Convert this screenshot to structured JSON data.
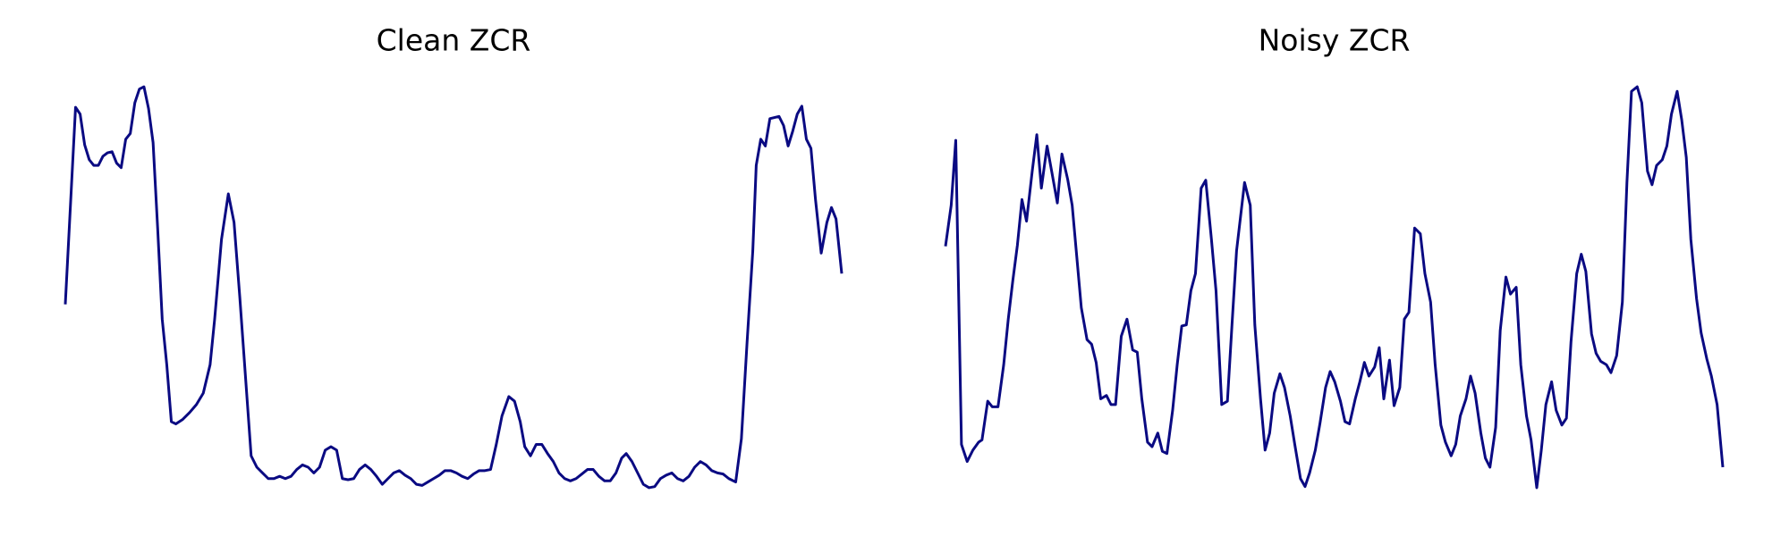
{
  "chart_data": [
    {
      "type": "line",
      "title": "Clean ZCR",
      "color": "#0a0a82",
      "xlim": [
        0,
        681
      ],
      "ylim": [
        0,
        400
      ],
      "x": [
        0,
        9,
        13,
        17,
        21,
        25,
        29,
        33,
        37,
        41,
        45,
        49,
        53,
        57,
        61,
        65,
        69,
        73,
        77,
        81,
        85,
        89,
        93,
        97,
        103,
        109,
        115,
        121,
        127,
        131,
        137,
        143,
        148,
        153,
        158,
        163,
        168,
        173,
        178,
        183,
        188,
        193,
        198,
        203,
        208,
        213,
        218,
        223,
        228,
        233,
        238,
        243,
        248,
        253,
        258,
        263,
        268,
        273,
        278,
        283,
        288,
        293,
        298,
        303,
        308,
        313,
        318,
        323,
        328,
        333,
        338,
        343,
        348,
        353,
        358,
        363,
        368,
        373,
        378,
        383,
        389,
        394,
        399,
        403,
        408,
        413,
        418,
        423,
        428,
        433,
        438,
        443,
        448,
        453,
        458,
        463,
        468,
        473,
        478,
        483,
        488,
        492,
        497,
        502,
        507,
        512,
        517,
        522,
        527,
        532,
        537,
        542,
        547,
        552,
        557,
        562,
        567,
        572,
        577,
        582,
        588,
        593,
        598,
        603,
        606,
        610,
        614,
        618,
        626,
        630,
        634,
        638,
        642,
        646,
        650,
        654,
        658,
        663,
        668,
        672,
        676,
        681
      ],
      "values": [
        183,
        356,
        350,
        323,
        310,
        305,
        305,
        313,
        316,
        317,
        307,
        303,
        328,
        333,
        360,
        372,
        374,
        355,
        325,
        250,
        170,
        130,
        80,
        78,
        82,
        88,
        95,
        105,
        130,
        170,
        240,
        280,
        255,
        190,
        120,
        50,
        40,
        35,
        30,
        30,
        32,
        30,
        32,
        38,
        42,
        40,
        35,
        40,
        55,
        58,
        55,
        30,
        29,
        30,
        38,
        42,
        38,
        32,
        25,
        30,
        35,
        37,
        33,
        30,
        25,
        24,
        27,
        30,
        33,
        37,
        37,
        35,
        32,
        30,
        34,
        37,
        37,
        38,
        60,
        85,
        102,
        98,
        80,
        58,
        50,
        60,
        60,
        52,
        45,
        35,
        30,
        28,
        30,
        34,
        38,
        38,
        32,
        28,
        28,
        35,
        48,
        52,
        45,
        35,
        25,
        22,
        23,
        30,
        33,
        35,
        30,
        28,
        32,
        40,
        45,
        42,
        37,
        35,
        34,
        30,
        27,
        65,
        150,
        230,
        305,
        328,
        322,
        346,
        348,
        340,
        322,
        335,
        350,
        357,
        328,
        320,
        275,
        228,
        255,
        268,
        258,
        210
      ]
    },
    {
      "type": "line",
      "title": "Noisy ZCR",
      "color": "#0a0a82",
      "xlim": [
        0,
        681
      ],
      "ylim": [
        0,
        400
      ],
      "x": [
        0,
        5,
        9,
        14,
        19,
        24,
        29,
        32,
        37,
        41,
        46,
        51,
        55,
        59,
        63,
        67,
        71,
        76,
        80,
        84,
        89,
        93,
        98,
        102,
        107,
        111,
        115,
        119,
        124,
        128,
        132,
        136,
        141,
        145,
        149,
        154,
        159,
        164,
        168,
        172,
        177,
        181,
        186,
        190,
        194,
        199,
        203,
        207,
        211,
        215,
        219,
        224,
        228,
        233,
        237,
        242,
        247,
        251,
        255,
        262,
        267,
        271,
        276,
        280,
        284,
        288,
        293,
        297,
        302,
        306,
        311,
        315,
        319,
        324,
        328,
        333,
        337,
        341,
        346,
        350,
        354,
        359,
        363,
        367,
        371,
        376,
        380,
        384,
        389,
        393,
        398,
        402,
        406,
        411,
        416,
        420,
        425,
        429,
        434,
        438,
        443,
        447,
        451,
        456,
        460,
        464,
        469,
        473,
        477,
        482,
        486,
        491,
        495,
        500,
        504,
        509,
        513,
        518,
        522,
        526,
        531,
        535,
        540,
        544,
        548,
        553,
        557,
        561,
        566,
        570,
        574,
        579,
        583,
        588,
        593,
        597,
        601,
        606,
        610,
        615,
        619,
        623,
        628,
        632,
        636,
        641,
        645,
        649,
        653,
        658,
        662,
        667,
        671,
        676,
        681
      ],
      "values": [
        234,
        270,
        327,
        60,
        45,
        55,
        62,
        64,
        98,
        93,
        93,
        130,
        170,
        204,
        235,
        275,
        256,
        300,
        332,
        285,
        322,
        300,
        272,
        315,
        293,
        270,
        225,
        180,
        152,
        148,
        132,
        100,
        103,
        95,
        95,
        155,
        170,
        143,
        141,
        100,
        62,
        58,
        70,
        54,
        52,
        90,
        130,
        164,
        165,
        195,
        210,
        285,
        292,
        240,
        195,
        95,
        98,
        165,
        230,
        290,
        270,
        165,
        100,
        55,
        70,
        105,
        122,
        110,
        85,
        60,
        30,
        23,
        35,
        55,
        78,
        110,
        124,
        115,
        98,
        80,
        78,
        100,
        115,
        132,
        120,
        128,
        145,
        100,
        134,
        94,
        110,
        170,
        176,
        250,
        245,
        210,
        185,
        130,
        77,
        62,
        50,
        60,
        85,
        100,
        120,
        105,
        70,
        48,
        40,
        75,
        160,
        207,
        192,
        198,
        130,
        85,
        64,
        22,
        55,
        95,
        115,
        90,
        77,
        83,
        150,
        210,
        227,
        212,
        157,
        140,
        133,
        130,
        123,
        138,
        185,
        290,
        370,
        374,
        360,
        300,
        288,
        305,
        310,
        322,
        350,
        370,
        345,
        312,
        240,
        188,
        158,
        135,
        120,
        95,
        40
      ]
    }
  ]
}
